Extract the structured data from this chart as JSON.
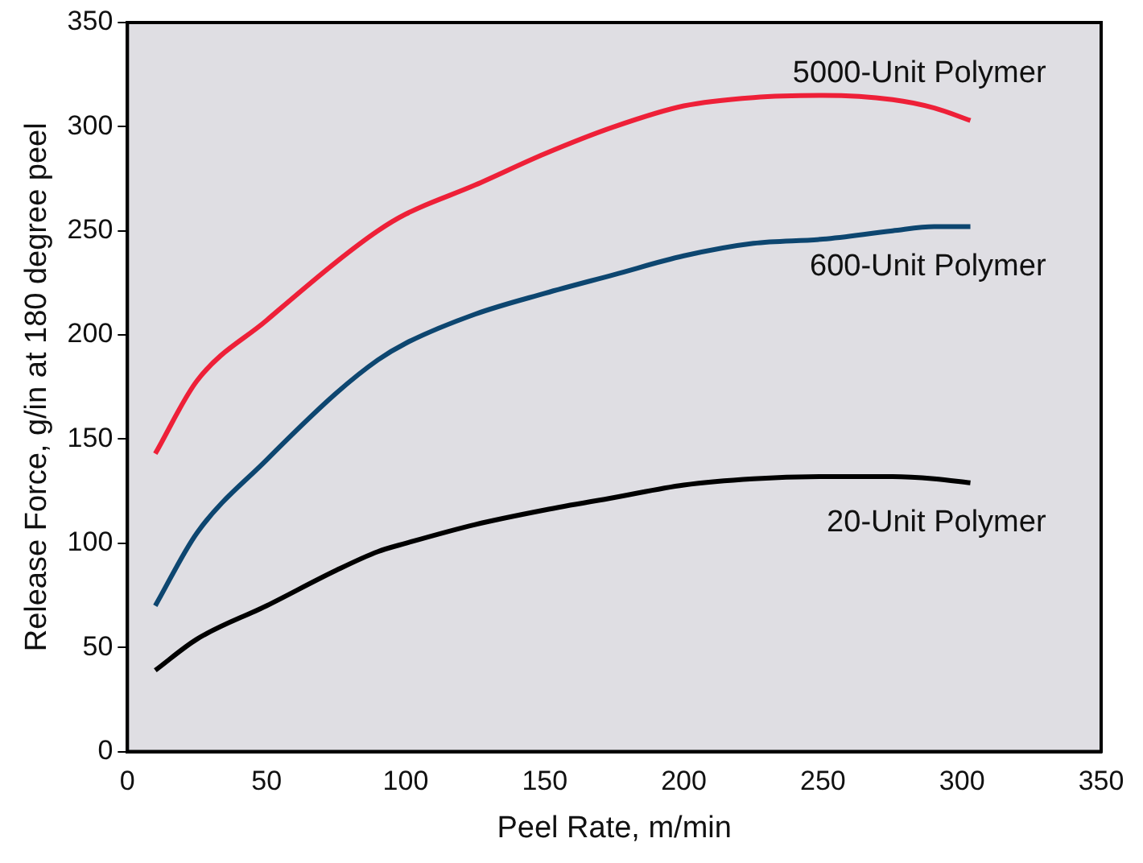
{
  "chart_data": {
    "type": "line",
    "xlabel": "Peel Rate, m/min",
    "ylabel": "Release Force, g/in at 180 degree peel",
    "x": [
      10,
      25,
      50,
      75,
      90,
      100,
      125,
      150,
      175,
      200,
      225,
      250,
      275,
      290,
      303
    ],
    "series": [
      {
        "name": "5000-Unit Polymer",
        "color": "#ee2038",
        "values": [
          143,
          178,
          207,
          235,
          250,
          258,
          272,
          287,
          300,
          310,
          314,
          315,
          313,
          309,
          303
        ]
      },
      {
        "name": "600-Unit Polymer",
        "color": "#0d4670",
        "values": [
          70,
          105,
          140,
          172,
          188,
          196,
          210,
          220,
          229,
          238,
          244,
          246,
          250,
          252,
          252
        ]
      },
      {
        "name": "20-Unit Polymer",
        "color": "#000000",
        "values": [
          39,
          54,
          70,
          87,
          96,
          100,
          109,
          116,
          122,
          128,
          131,
          132,
          132,
          131,
          129
        ]
      }
    ],
    "xlim": [
      0,
      350
    ],
    "xticks": [
      0,
      50,
      100,
      150,
      200,
      250,
      300,
      350
    ],
    "ylim": [
      0,
      350
    ],
    "yticks": [
      0,
      50,
      100,
      150,
      200,
      250,
      300,
      350
    ],
    "grid": false,
    "legend": false,
    "marker": "none",
    "line_style": "solid"
  }
}
